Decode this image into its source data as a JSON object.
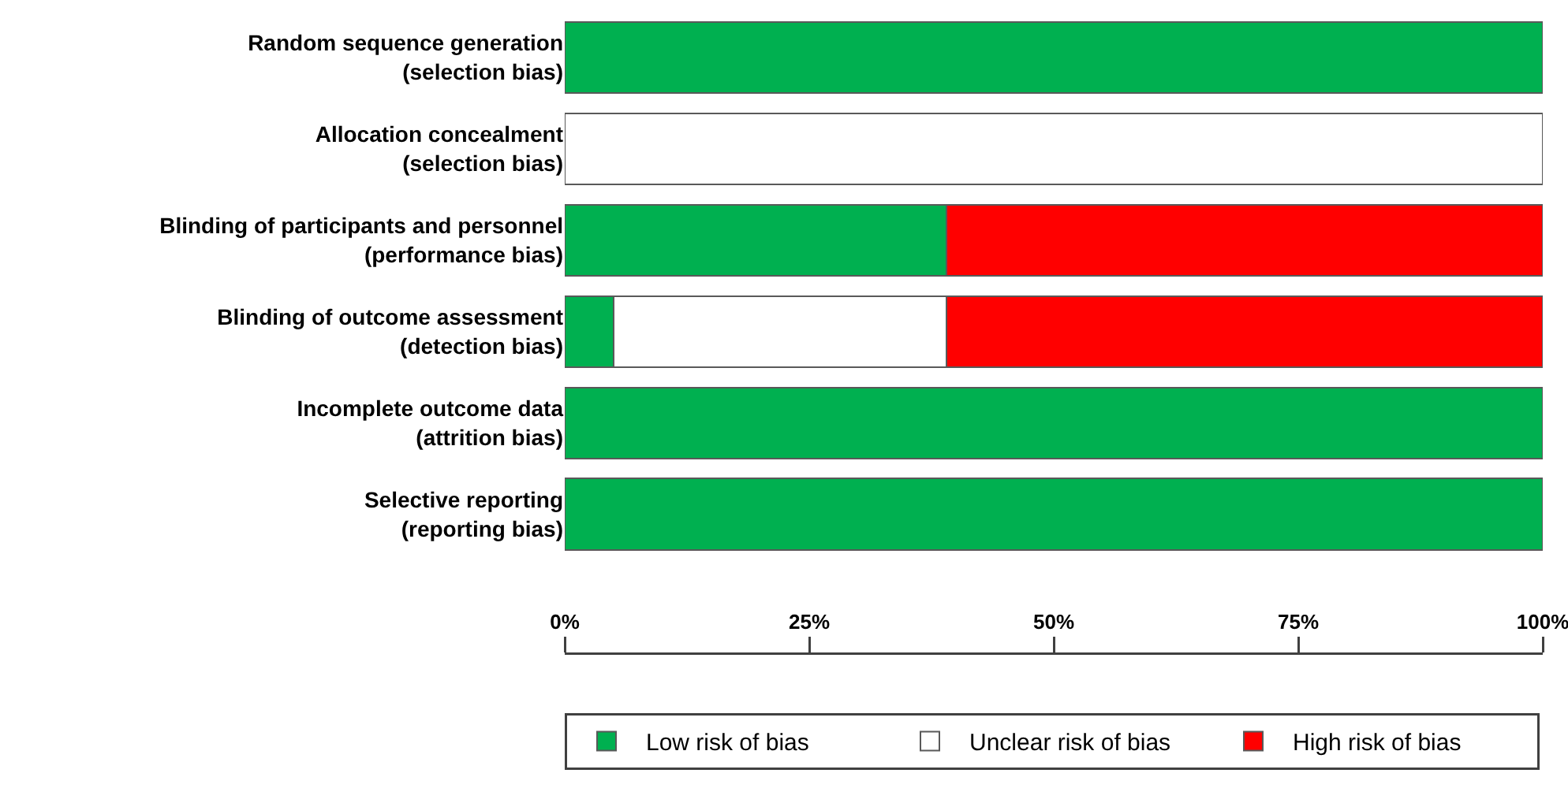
{
  "chart_data": {
    "type": "bar",
    "orientation": "horizontal",
    "stacked": true,
    "categories": [
      "Random sequence generation\n(selection bias)",
      "Allocation concealment\n(selection bias)",
      "Blinding of participants and personnel\n(performance bias)",
      "Blinding of outcome assessment\n(detection bias)",
      "Incomplete outcome data\n(attrition bias)",
      "Selective reporting\n(reporting bias)"
    ],
    "series": [
      {
        "name": "Low risk of bias",
        "color": "#00b050",
        "values": [
          100,
          0,
          39,
          5,
          100,
          100
        ]
      },
      {
        "name": "Unclear risk of bias",
        "color": "#ffffff",
        "values": [
          0,
          100,
          0,
          34,
          0,
          0
        ]
      },
      {
        "name": "High risk of bias",
        "color": "#ff0000",
        "values": [
          0,
          0,
          61,
          61,
          0,
          0
        ]
      }
    ],
    "xlim": [
      0,
      100
    ],
    "xticks": [
      {
        "value": 0,
        "label": "0%"
      },
      {
        "value": 25,
        "label": "25%"
      },
      {
        "value": 50,
        "label": "50%"
      },
      {
        "value": 75,
        "label": "75%"
      },
      {
        "value": 100,
        "label": "100%"
      }
    ],
    "grid": false,
    "legend": "bottom"
  }
}
